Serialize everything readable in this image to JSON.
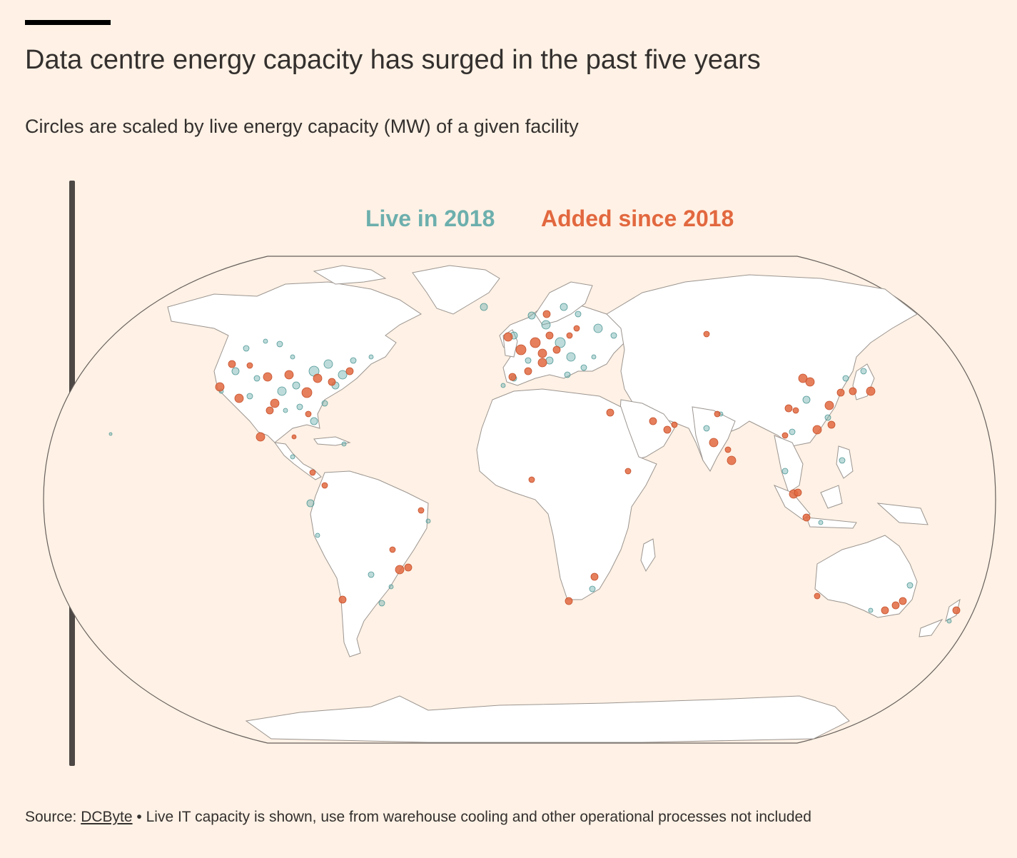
{
  "header": {
    "title": "Data centre energy capacity has surged in the past five years",
    "subtitle": "Circles are scaled by live energy capacity (MW) of a given facility"
  },
  "legend": {
    "live_label": "Live in 2018",
    "added_label": "Added since 2018"
  },
  "colors": {
    "background": "#fff1e5",
    "live": "#6cafad",
    "added": "#e2683f",
    "land": "#ffffff",
    "border": "#8f8a86"
  },
  "slider": {
    "label": "timeline-slider"
  },
  "footer": {
    "source_prefix": "Source: ",
    "source_link": "DCByte",
    "source_note": " • Live IT capacity is shown, use from warehouse cooling and other operational processes not included"
  }
}
